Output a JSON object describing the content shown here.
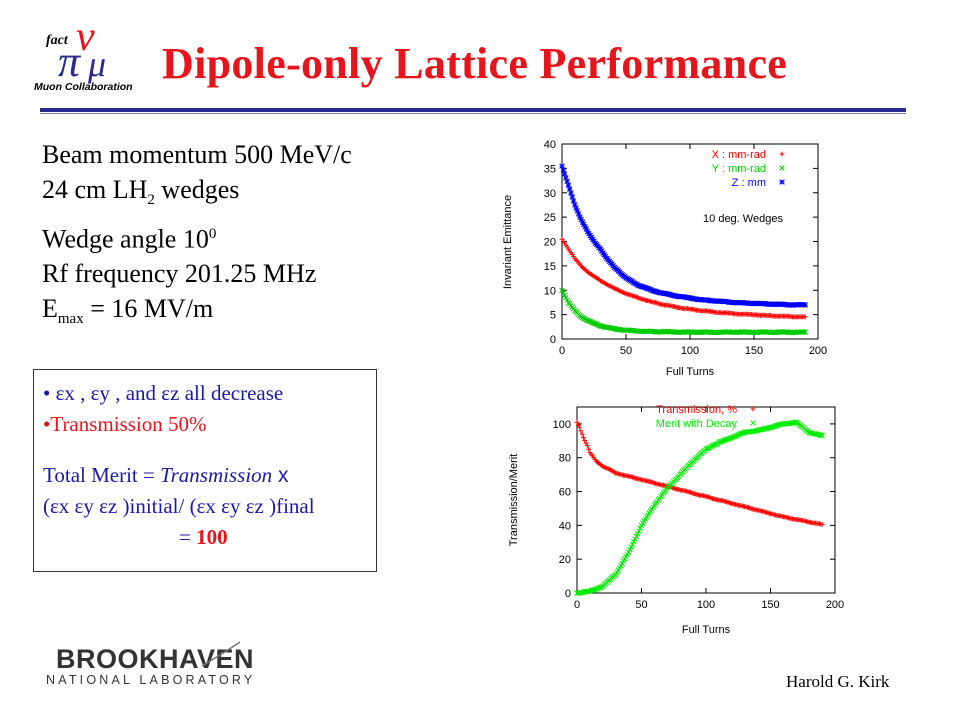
{
  "slide": {
    "title": "Dipole-only Lattice Performance",
    "author": "Harold G. Kirk",
    "logo_top": {
      "fact": "fact",
      "collab": "Muon Collaboration"
    },
    "logo_bottom": {
      "line1": "BROOKHAVEN",
      "line2": "NATIONAL LABORATORY"
    }
  },
  "params": {
    "momentum": "Beam momentum 500 MeV/c",
    "wedges_pre": "24 cm LH",
    "wedges_sub": "2",
    "wedges_post": " wedges",
    "angle_pre": "Wedge angle 10",
    "angle_sup": "0",
    "rf": "Rf frequency 201.25 MHz",
    "emax_pre": "E",
    "emax_sub": "max",
    "emax_post": " = 16 MV/m"
  },
  "box": {
    "bullet1": "• εx , εy , and εz all decrease",
    "bullet2": "•Transmission 50%",
    "merit1_pre": "Total Merit = ",
    "merit1_em": "Transmission",
    "merit1_post": " x",
    "merit2": "(εx εy εz )initial/ (εx εy εz )final",
    "merit3_pre": "= ",
    "merit3_val": "100"
  },
  "chart_data": [
    {
      "type": "scatter",
      "title": "",
      "annotation": "10 deg. Wedges",
      "xlabel": "Full Turns",
      "ylabel": "Invariant Emittance",
      "xlim": [
        0,
        200
      ],
      "ylim": [
        0,
        40
      ],
      "xticks": [
        "0",
        "50",
        "100",
        "150",
        "200"
      ],
      "yticks": [
        "0",
        "5",
        "10",
        "15",
        "20",
        "25",
        "30",
        "35",
        "40"
      ],
      "grid": false,
      "legend": "top-right",
      "series": [
        {
          "name": "X : mm-rad",
          "marker": "+",
          "color": "#ff0000",
          "x": [
            0,
            5,
            10,
            15,
            20,
            25,
            30,
            40,
            50,
            60,
            70,
            80,
            90,
            100,
            110,
            120,
            130,
            140,
            150,
            160,
            170,
            180,
            190
          ],
          "y": [
            20.5,
            18.5,
            16.5,
            15,
            13.8,
            12.8,
            12,
            10.5,
            9.3,
            8.4,
            7.6,
            7,
            6.5,
            6.1,
            5.8,
            5.5,
            5.3,
            5.1,
            5,
            4.8,
            4.7,
            4.6,
            4.5
          ]
        },
        {
          "name": "Y : mm-rad",
          "marker": "×",
          "color": "#00cc00",
          "x": [
            0,
            5,
            10,
            15,
            20,
            25,
            30,
            40,
            50,
            60,
            70,
            80,
            90,
            100,
            110,
            120,
            130,
            140,
            150,
            160,
            170,
            180,
            190
          ],
          "y": [
            10,
            7.5,
            5.8,
            4.6,
            3.8,
            3.2,
            2.7,
            2.1,
            1.8,
            1.6,
            1.5,
            1.5,
            1.4,
            1.4,
            1.4,
            1.4,
            1.4,
            1.4,
            1.4,
            1.4,
            1.4,
            1.4,
            1.4
          ]
        },
        {
          "name": "Z : mm",
          "marker": "*",
          "color": "#0000ff",
          "x": [
            0,
            5,
            10,
            15,
            20,
            25,
            30,
            35,
            40,
            50,
            60,
            70,
            80,
            90,
            100,
            110,
            120,
            130,
            140,
            150,
            160,
            170,
            180,
            190
          ],
          "y": [
            35.5,
            31.5,
            27.5,
            24.5,
            22,
            20,
            18.5,
            16.5,
            15,
            12.5,
            11,
            10,
            9.3,
            8.8,
            8.4,
            8,
            7.8,
            7.6,
            7.4,
            7.3,
            7.2,
            7.1,
            7,
            7
          ]
        }
      ]
    },
    {
      "type": "scatter",
      "title": "",
      "xlabel": "Full Turns",
      "ylabel": "Transmission/Merit",
      "xlim": [
        0,
        200
      ],
      "ylim": [
        0,
        110
      ],
      "xticks": [
        "0",
        "50",
        "100",
        "150",
        "200"
      ],
      "yticks": [
        "0",
        "20",
        "40",
        "60",
        "80",
        "100"
      ],
      "grid": false,
      "legend": "top-right",
      "series": [
        {
          "name": "Transmission, %",
          "marker": "+",
          "color": "#ff0000",
          "x": [
            0,
            2,
            5,
            8,
            10,
            15,
            20,
            25,
            30,
            40,
            50,
            60,
            70,
            80,
            90,
            100,
            110,
            120,
            130,
            140,
            150,
            160,
            170,
            180,
            190
          ],
          "y": [
            101,
            98,
            92,
            87,
            83,
            78,
            75,
            73,
            71,
            69,
            67,
            65,
            63,
            61,
            59,
            57,
            55,
            53,
            51,
            49,
            47,
            45,
            43.5,
            42,
            40.5
          ]
        },
        {
          "name": "Merit with Decay",
          "marker": "×",
          "color": "#00ee00",
          "x": [
            0,
            10,
            20,
            30,
            40,
            50,
            60,
            70,
            80,
            90,
            100,
            110,
            120,
            130,
            140,
            150,
            160,
            170,
            180,
            190
          ],
          "y": [
            0,
            1,
            4,
            11,
            24,
            40,
            52,
            62,
            70,
            78,
            85,
            89,
            92,
            95,
            96,
            98,
            100,
            101,
            95,
            93
          ]
        }
      ]
    }
  ]
}
